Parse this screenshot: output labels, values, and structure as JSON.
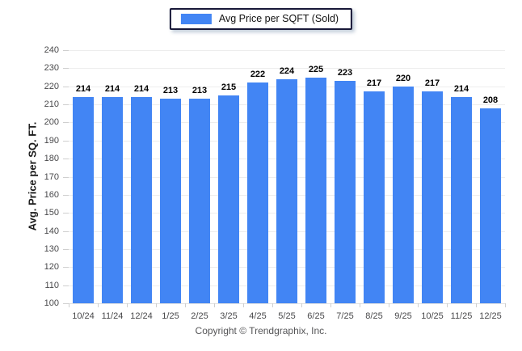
{
  "page": {
    "footer": "Copyright © Trendgraphix, Inc."
  },
  "legend": {
    "label": "Avg Price per SQFT (Sold)",
    "swatch_color": "#4285f4"
  },
  "chart_data": {
    "type": "bar",
    "title": "",
    "series_name": "Avg Price per SQFT (Sold)",
    "categories": [
      "10/24",
      "11/24",
      "12/24",
      "1/25",
      "2/25",
      "3/25",
      "4/25",
      "5/25",
      "6/25",
      "7/25",
      "8/25",
      "9/25",
      "10/25",
      "11/25",
      "12/25"
    ],
    "values": [
      214,
      214,
      214,
      213,
      213,
      215,
      222,
      224,
      225,
      223,
      217,
      220,
      217,
      214,
      208
    ],
    "xlabel": "",
    "ylabel": "Avg. Price per SQ. FT.",
    "ylim": [
      100,
      240
    ],
    "ytick_step": 10,
    "bar_color": "#4285f4",
    "gridline_color": "#ededed",
    "grid": true,
    "value_labels": true,
    "legend_position": "top-center"
  }
}
